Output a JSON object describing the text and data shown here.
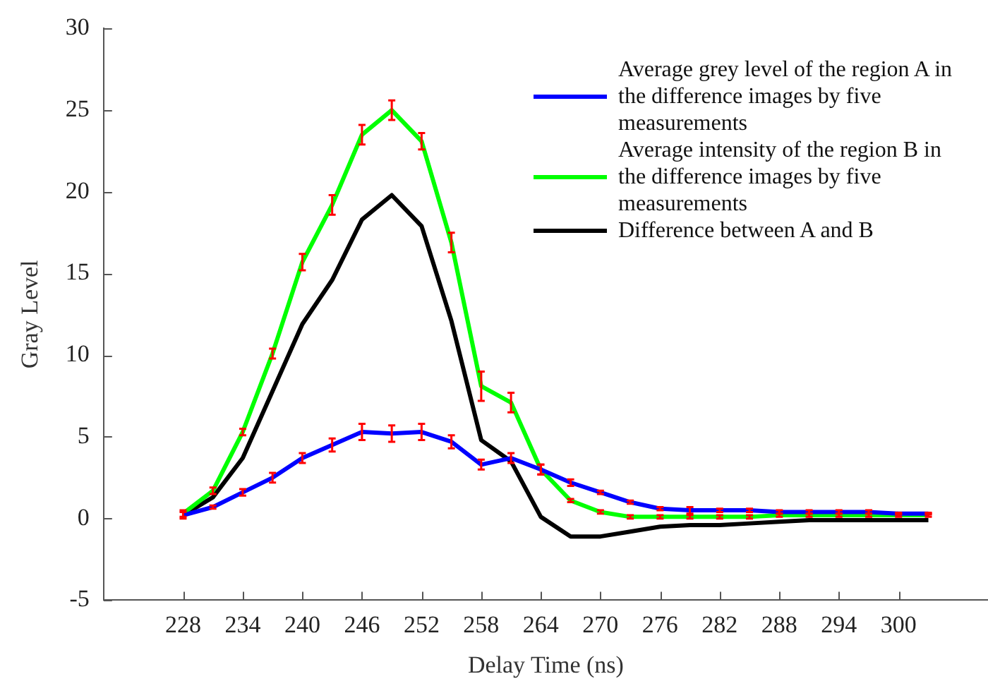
{
  "chart_data": {
    "type": "line",
    "xlabel": "Delay Time (ns)",
    "ylabel": "Gray Level",
    "x": [
      228,
      231,
      234,
      237,
      240,
      243,
      246,
      249,
      252,
      255,
      258,
      261,
      264,
      267,
      270,
      273,
      276,
      279,
      282,
      285,
      288,
      291,
      294,
      297,
      300,
      303
    ],
    "xlim": [
      220,
      309
    ],
    "xticks": [
      228,
      234,
      240,
      246,
      252,
      258,
      264,
      270,
      276,
      282,
      288,
      294,
      300
    ],
    "ylim": [
      -5,
      30
    ],
    "yticks": [
      -5,
      0,
      5,
      10,
      15,
      20,
      25,
      30
    ],
    "grid": false,
    "legend": "top right",
    "marker": "none",
    "line_style": "solid",
    "series": [
      {
        "name": "Average grey level of the region A in the difference images by five measurements",
        "color": "#0000ff",
        "values": [
          0.2,
          0.7,
          1.6,
          2.5,
          3.7,
          4.5,
          5.3,
          5.2,
          5.3,
          4.7,
          3.3,
          3.7,
          3.0,
          2.2,
          1.6,
          1.0,
          0.6,
          0.5,
          0.5,
          0.5,
          0.4,
          0.4,
          0.4,
          0.4,
          0.3,
          0.3
        ],
        "errors": [
          0.2,
          0.1,
          0.2,
          0.3,
          0.3,
          0.4,
          0.5,
          0.5,
          0.5,
          0.4,
          0.3,
          0.3,
          0.3,
          0.2,
          0.1,
          0.1,
          0.1,
          0.2,
          0.1,
          0.1,
          0.1,
          0.1,
          0.1,
          0.1,
          0.05,
          0.05
        ]
      },
      {
        "name": "Average intensity of the region B in the difference images by five measurements",
        "color": "#00ff00",
        "values": [
          0.3,
          1.7,
          5.3,
          10.1,
          15.7,
          19.2,
          23.5,
          25.0,
          23.1,
          16.9,
          8.1,
          7.1,
          3.0,
          1.1,
          0.4,
          0.1,
          0.1,
          0.1,
          0.1,
          0.1,
          0.2,
          0.2,
          0.2,
          0.2,
          0.2,
          0.2
        ],
        "errors": [
          0.2,
          0.2,
          0.2,
          0.3,
          0.5,
          0.6,
          0.6,
          0.6,
          0.5,
          0.6,
          0.9,
          0.6,
          0.3,
          0.1,
          0.1,
          0.1,
          0.1,
          0.1,
          0.1,
          0.1,
          0.1,
          0.1,
          0.1,
          0.1,
          0.1,
          0.1
        ]
      },
      {
        "name": "Difference between A and B",
        "color": "#000000",
        "values": [
          0.2,
          1.3,
          3.7,
          7.8,
          11.9,
          14.6,
          18.3,
          19.8,
          17.9,
          12.1,
          4.8,
          3.5,
          0.1,
          -1.1,
          -1.1,
          -0.8,
          -0.5,
          -0.4,
          -0.4,
          -0.3,
          -0.2,
          -0.1,
          -0.1,
          -0.1,
          -0.1,
          -0.1
        ]
      }
    ]
  }
}
